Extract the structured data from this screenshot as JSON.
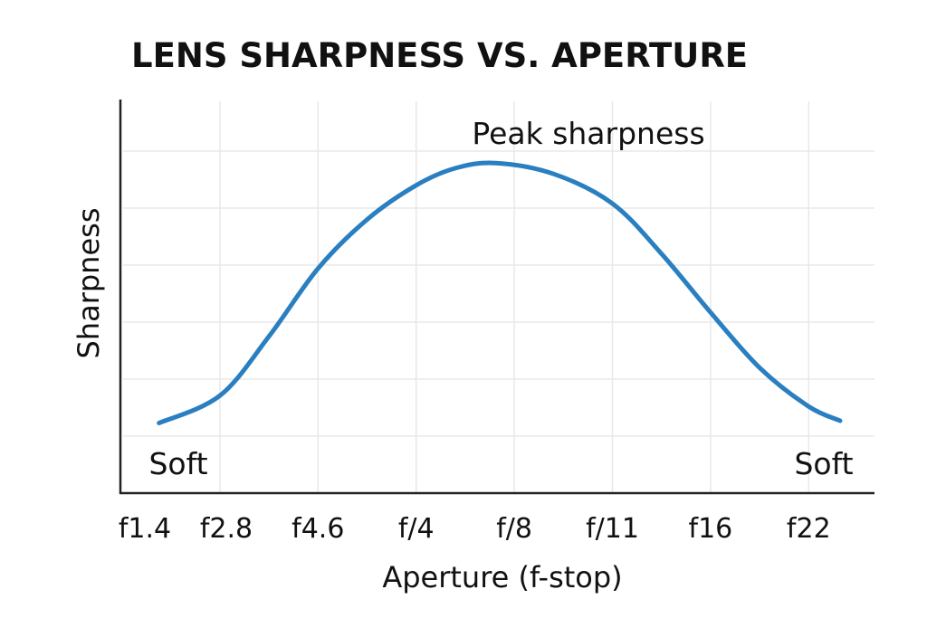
{
  "chart_data": {
    "type": "line",
    "title": "LENS SHARPNESS VS. APERTURE",
    "xlabel": "Aperture (f-stop)",
    "ylabel": "Sharpness",
    "categories": [
      "f1.4",
      "f2.8",
      "f4.6",
      "f/4",
      "f/8",
      "f/11",
      "f16",
      "f22"
    ],
    "ylim": [
      0,
      7
    ],
    "grid": true,
    "y_tick_labels": false,
    "series": [
      {
        "color": "#2a7fc1",
        "points": [
          {
            "x": 0.38,
            "y": 1.23
          },
          {
            "x": 1.0,
            "y": 1.71
          },
          {
            "x": 1.5,
            "y": 2.75
          },
          {
            "x": 2.0,
            "y": 3.94
          },
          {
            "x": 2.5,
            "y": 4.8
          },
          {
            "x": 3.0,
            "y": 5.4
          },
          {
            "x": 3.4,
            "y": 5.7
          },
          {
            "x": 3.81,
            "y": 5.79
          },
          {
            "x": 4.4,
            "y": 5.6
          },
          {
            "x": 5.0,
            "y": 5.08
          },
          {
            "x": 5.5,
            "y": 4.2
          },
          {
            "x": 6.0,
            "y": 3.17
          },
          {
            "x": 6.5,
            "y": 2.2
          },
          {
            "x": 7.0,
            "y": 1.52
          },
          {
            "x": 7.32,
            "y": 1.27
          }
        ]
      }
    ],
    "annotations": {
      "peak": "Peak sharpness",
      "soft_left": "Soft",
      "soft_right": "Soft"
    }
  }
}
